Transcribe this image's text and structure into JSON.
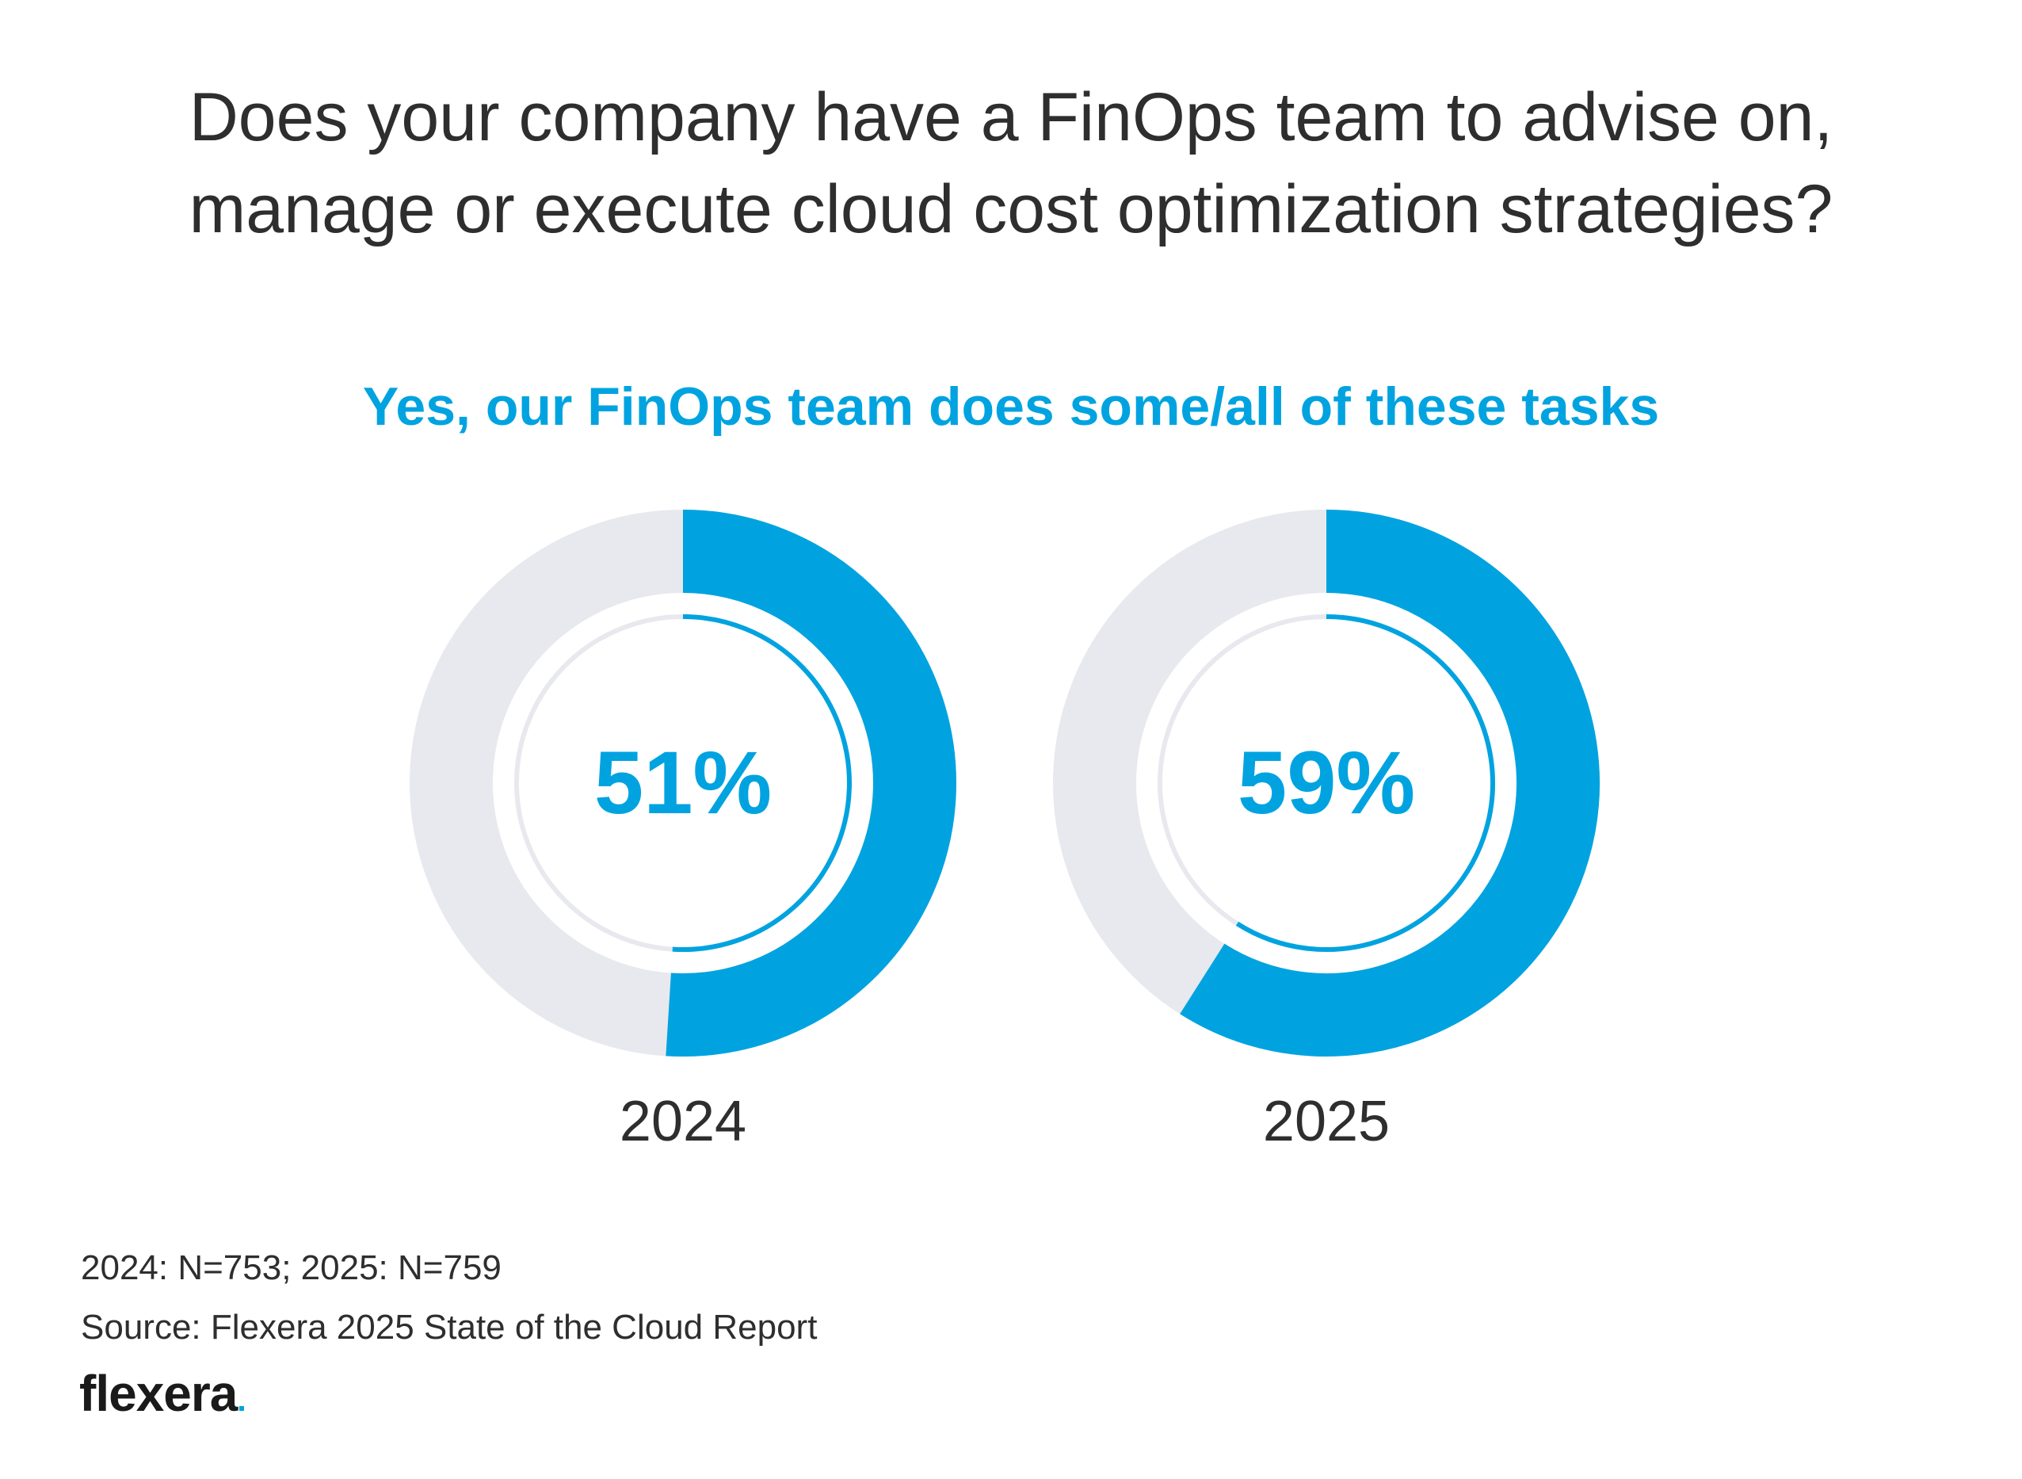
{
  "header": {
    "title_line1": "Does your company have a FinOps team to advise on,",
    "title_line2": "manage or execute cloud cost optimization strategies?"
  },
  "chart_data": {
    "type": "donut",
    "title": "Does your company have a FinOps team to advise on, manage or execute cloud cost optimization strategies?",
    "subtitle": "Yes, our FinOps team does some/all of these tasks",
    "categories": [
      "2024",
      "2025"
    ],
    "values": [
      51,
      59
    ],
    "value_labels": [
      "51%",
      "59%"
    ],
    "unit": "%",
    "max": 100,
    "colors": {
      "filled": "#00a3e0",
      "track": "#e8e9ee",
      "inner_track": "#e8e9ee"
    }
  },
  "footer": {
    "sample_note": "2024: N=753; 2025: N=759",
    "source_note": "Source: Flexera 2025 State of the Cloud Report"
  },
  "brand": {
    "logo_text": "flexera",
    "logo_color": "#1a1a1a",
    "accent_color": "#00a3e0"
  }
}
